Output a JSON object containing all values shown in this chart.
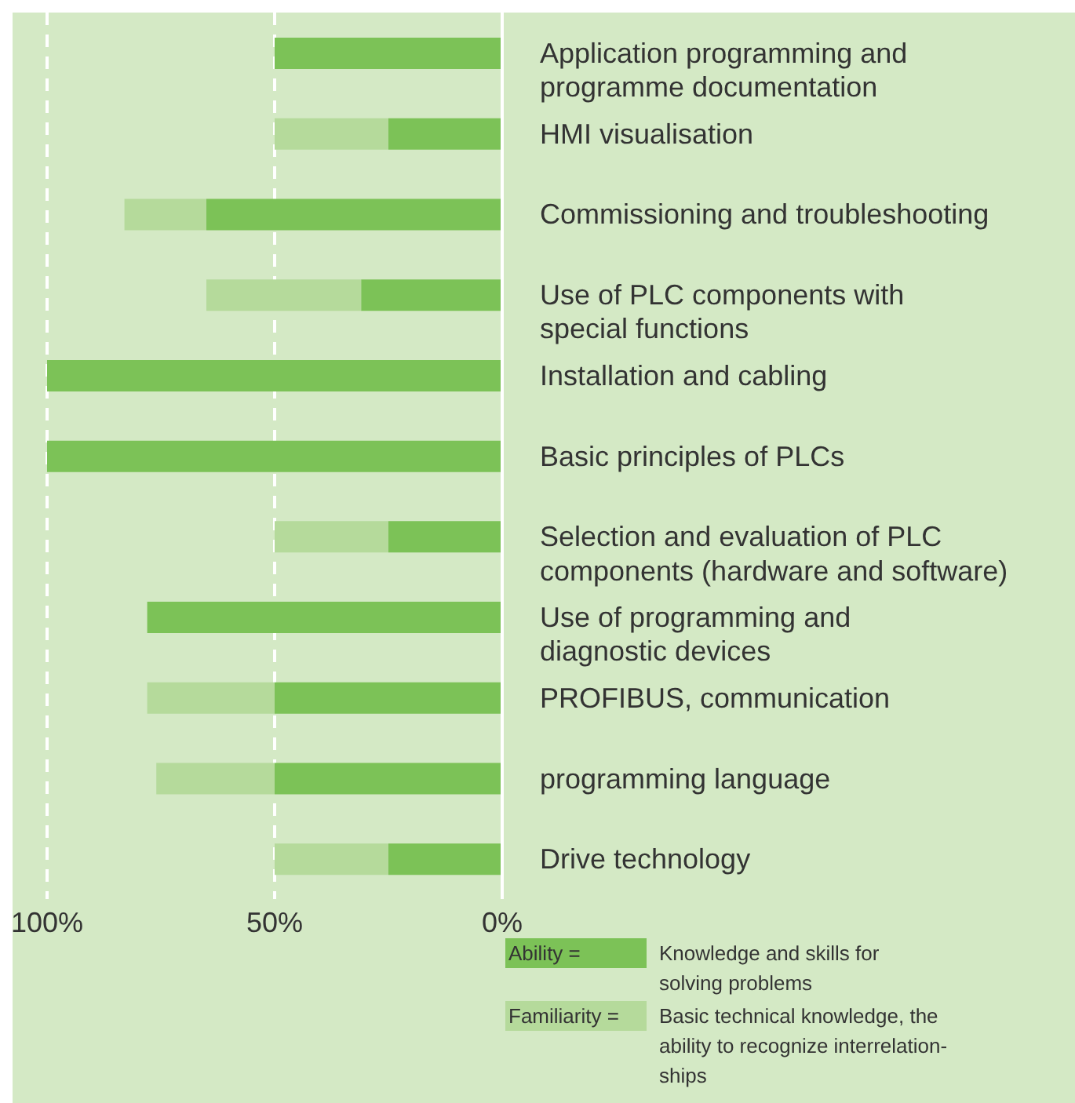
{
  "chart_data": {
    "type": "bar",
    "orientation": "horizontal",
    "stacked": true,
    "categories": [
      "Application programming and\nprogramme documentation",
      "HMI visualisation",
      "Commissioning and troubleshooting",
      "Use of PLC components with\nspecial functions",
      "Installation and cabling",
      "Basic principles of PLCs",
      "Selection and evaluation of PLC\ncomponents (hardware and software)",
      "Use of programming and\ndiagnostic devices",
      "PROFIBUS, communication",
      "programming language",
      "Drive technology"
    ],
    "series": [
      {
        "name": "Ability =",
        "color": "#7cc257",
        "values": [
          50,
          25,
          65,
          31,
          100,
          100,
          25,
          78,
          50,
          50,
          25
        ]
      },
      {
        "name": "Familiarity =",
        "color": "#b5da9b",
        "values": [
          0,
          25,
          18,
          34,
          0,
          0,
          25,
          0,
          28,
          26,
          25
        ]
      }
    ],
    "xlim": [
      100,
      0
    ],
    "xticks": [
      {
        "value": 100,
        "label": "100%"
      },
      {
        "value": 50,
        "label": "50%"
      },
      {
        "value": 0,
        "label": "0%"
      }
    ],
    "grid": "x",
    "legend": "bottom",
    "annotations": [
      "Knowledge and skills for\nsolving problems",
      "Basic technical knowledge, the\nability to recognize interrelation-\nships"
    ]
  }
}
